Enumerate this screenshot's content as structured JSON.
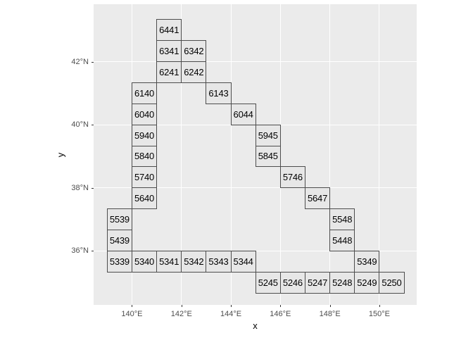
{
  "chart_data": {
    "type": "heatmap",
    "subtype": "labeled-grid-cells-map",
    "title": "",
    "xlabel": "x",
    "ylabel": "y",
    "xlim": [
      138.45,
      151.51
    ],
    "ylim": [
      34.29,
      43.82
    ],
    "grid": true,
    "legend": "none",
    "x_ticks": [
      {
        "value": 140,
        "label": "140°E"
      },
      {
        "value": 142,
        "label": "142°E"
      },
      {
        "value": 144,
        "label": "144°E"
      },
      {
        "value": 146,
        "label": "146°E"
      },
      {
        "value": 148,
        "label": "148°E"
      },
      {
        "value": 150,
        "label": "150°E"
      }
    ],
    "y_ticks": [
      {
        "value": 36,
        "label": "36°N"
      },
      {
        "value": 38,
        "label": "38°N"
      },
      {
        "value": 40,
        "label": "40°N"
      },
      {
        "value": 42,
        "label": "42°N"
      }
    ],
    "cells": [
      {
        "code": "6441",
        "lon": [
          141,
          142
        ],
        "lat": [
          42.667,
          43.333
        ]
      },
      {
        "code": "6341",
        "lon": [
          141,
          142
        ],
        "lat": [
          42.0,
          42.667
        ]
      },
      {
        "code": "6342",
        "lon": [
          142,
          143
        ],
        "lat": [
          42.0,
          42.667
        ]
      },
      {
        "code": "6241",
        "lon": [
          141,
          142
        ],
        "lat": [
          41.333,
          42.0
        ]
      },
      {
        "code": "6242",
        "lon": [
          142,
          143
        ],
        "lat": [
          41.333,
          42.0
        ]
      },
      {
        "code": "6140",
        "lon": [
          140,
          141
        ],
        "lat": [
          40.667,
          41.333
        ]
      },
      {
        "code": "6143",
        "lon": [
          143,
          144
        ],
        "lat": [
          40.667,
          41.333
        ]
      },
      {
        "code": "6040",
        "lon": [
          140,
          141
        ],
        "lat": [
          40.0,
          40.667
        ]
      },
      {
        "code": "6044",
        "lon": [
          144,
          145
        ],
        "lat": [
          40.0,
          40.667
        ]
      },
      {
        "code": "5940",
        "lon": [
          140,
          141
        ],
        "lat": [
          39.333,
          40.0
        ]
      },
      {
        "code": "5945",
        "lon": [
          145,
          146
        ],
        "lat": [
          39.333,
          40.0
        ]
      },
      {
        "code": "5840",
        "lon": [
          140,
          141
        ],
        "lat": [
          38.667,
          39.333
        ]
      },
      {
        "code": "5845",
        "lon": [
          145,
          146
        ],
        "lat": [
          38.667,
          39.333
        ]
      },
      {
        "code": "5740",
        "lon": [
          140,
          141
        ],
        "lat": [
          38.0,
          38.667
        ]
      },
      {
        "code": "5746",
        "lon": [
          146,
          147
        ],
        "lat": [
          38.0,
          38.667
        ]
      },
      {
        "code": "5640",
        "lon": [
          140,
          141
        ],
        "lat": [
          37.333,
          38.0
        ]
      },
      {
        "code": "5647",
        "lon": [
          147,
          148
        ],
        "lat": [
          37.333,
          38.0
        ]
      },
      {
        "code": "5539",
        "lon": [
          139,
          140
        ],
        "lat": [
          36.667,
          37.333
        ]
      },
      {
        "code": "5548",
        "lon": [
          148,
          149
        ],
        "lat": [
          36.667,
          37.333
        ]
      },
      {
        "code": "5439",
        "lon": [
          139,
          140
        ],
        "lat": [
          36.0,
          36.667
        ]
      },
      {
        "code": "5448",
        "lon": [
          148,
          149
        ],
        "lat": [
          36.0,
          36.667
        ]
      },
      {
        "code": "5339",
        "lon": [
          139,
          140
        ],
        "lat": [
          35.333,
          36.0
        ]
      },
      {
        "code": "5340",
        "lon": [
          140,
          141
        ],
        "lat": [
          35.333,
          36.0
        ]
      },
      {
        "code": "5341",
        "lon": [
          141,
          142
        ],
        "lat": [
          35.333,
          36.0
        ]
      },
      {
        "code": "5342",
        "lon": [
          142,
          143
        ],
        "lat": [
          35.333,
          36.0
        ]
      },
      {
        "code": "5343",
        "lon": [
          143,
          144
        ],
        "lat": [
          35.333,
          36.0
        ]
      },
      {
        "code": "5344",
        "lon": [
          144,
          145
        ],
        "lat": [
          35.333,
          36.0
        ]
      },
      {
        "code": "5349",
        "lon": [
          149,
          150
        ],
        "lat": [
          35.333,
          36.0
        ]
      },
      {
        "code": "5245",
        "lon": [
          145,
          146
        ],
        "lat": [
          34.667,
          35.333
        ]
      },
      {
        "code": "5246",
        "lon": [
          146,
          147
        ],
        "lat": [
          34.667,
          35.333
        ]
      },
      {
        "code": "5247",
        "lon": [
          147,
          148
        ],
        "lat": [
          34.667,
          35.333
        ]
      },
      {
        "code": "5248",
        "lon": [
          148,
          149
        ],
        "lat": [
          34.667,
          35.333
        ]
      },
      {
        "code": "5249",
        "lon": [
          149,
          150
        ],
        "lat": [
          34.667,
          35.333
        ]
      },
      {
        "code": "5250",
        "lon": [
          150,
          151
        ],
        "lat": [
          34.667,
          35.333
        ]
      }
    ],
    "colors": {
      "figure_bg": "#FFFFFF",
      "panel_bg": "#EBEBEB",
      "gridline": "#FFFFFF",
      "cell_fill": "#E7E7E7",
      "cell_border": "#4D4D4D",
      "tick_mark": "#333333",
      "tick_label": "#4D4D4D",
      "axis_title": "#000000"
    }
  }
}
